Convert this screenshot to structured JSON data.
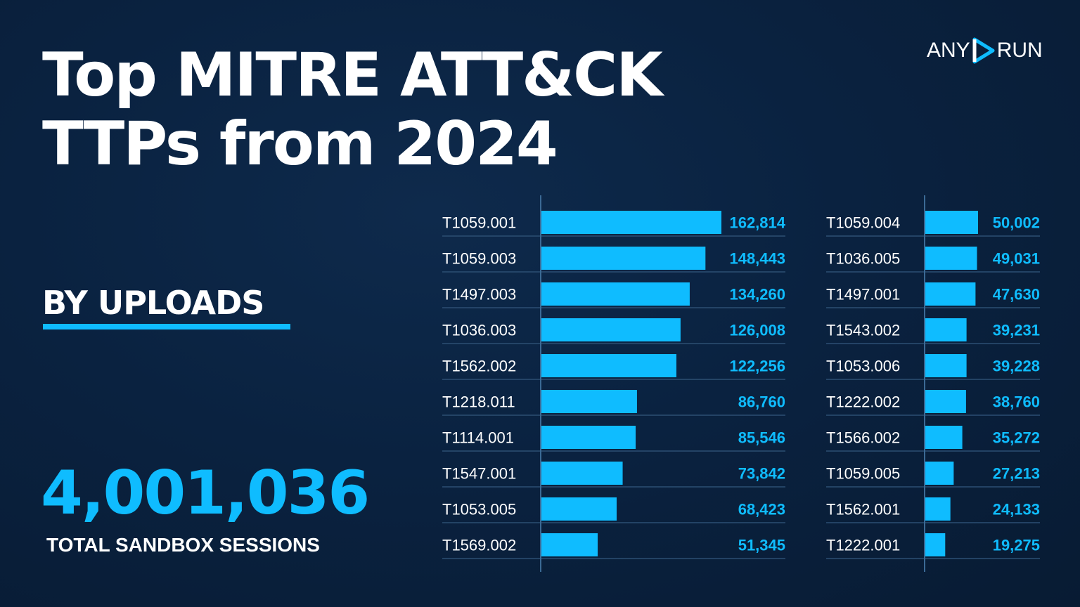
{
  "header": {
    "title_line1": "Top MITRE ATT&CK",
    "title_line2": "TTPs from 2024",
    "logo_left": "ANY",
    "logo_right": "RUN"
  },
  "colors": {
    "accent": "#0fbcff",
    "background": "#0a2240",
    "divider": "#2c4f73",
    "text": "#ffffff"
  },
  "section": {
    "label": "BY UPLOADS"
  },
  "totals": {
    "value": "4,001,036",
    "label": "TOTAL SANDBOX SESSIONS"
  },
  "chart_data": [
    {
      "type": "bar",
      "orientation": "horizontal",
      "categories": [
        "T1059.001",
        "T1059.003",
        "T1497.003",
        "T1036.003",
        "T1562.002",
        "T1218.011",
        "T1114.001",
        "T1547.001",
        "T1053.005",
        "T1569.002"
      ],
      "values": [
        162814,
        148443,
        134260,
        126008,
        122256,
        86760,
        85546,
        73842,
        68423,
        51345
      ],
      "value_labels": [
        "162,814",
        "148,443",
        "134,260",
        "126,008",
        "122,256",
        "86,760",
        "85,546",
        "73,842",
        "68,423",
        "51,345"
      ],
      "color": "#0fbcff"
    },
    {
      "type": "bar",
      "orientation": "horizontal",
      "categories": [
        "T1059.004",
        "T1036.005",
        "T1497.001",
        "T1543.002",
        "T1053.006",
        "T1222.002",
        "T1566.002",
        "T1059.005",
        "T1562.001",
        "T1222.001"
      ],
      "values": [
        50002,
        49031,
        47630,
        39231,
        39228,
        38760,
        35272,
        27213,
        24133,
        19275
      ],
      "value_labels": [
        "50,002",
        "49,031",
        "47,630",
        "39,231",
        "39,228",
        "38,760",
        "35,272",
        "27,213",
        "24,133",
        "19,275"
      ],
      "color": "#0fbcff"
    }
  ]
}
